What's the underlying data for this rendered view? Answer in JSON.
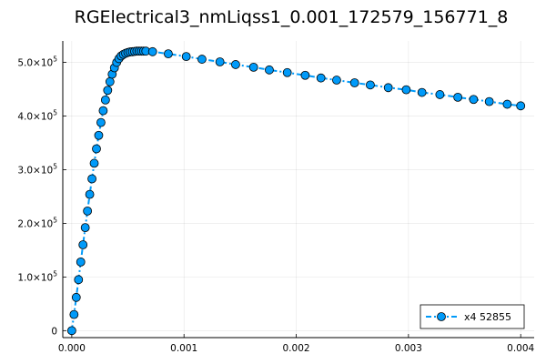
{
  "chart_data": {
    "type": "line",
    "title": "RGElectrical3_nmLiqss1_0.001_172579_156771_8",
    "xlabel": "",
    "ylabel": "",
    "xlim": [
      -8e-05,
      0.00412
    ],
    "ylim": [
      -13000,
      540000
    ],
    "grid": true,
    "legend_position": "bottom-right",
    "x_ticks": [
      {
        "value": 0.0,
        "label": "0.000"
      },
      {
        "value": 0.001,
        "label": "0.001"
      },
      {
        "value": 0.002,
        "label": "0.002"
      },
      {
        "value": 0.003,
        "label": "0.003"
      },
      {
        "value": 0.004,
        "label": "0.004"
      }
    ],
    "y_ticks": [
      {
        "value": 0,
        "mantissa": "0",
        "exponent": ""
      },
      {
        "value": 100000,
        "mantissa": "1.0×10",
        "exponent": "5"
      },
      {
        "value": 200000,
        "mantissa": "2.0×10",
        "exponent": "5"
      },
      {
        "value": 300000,
        "mantissa": "3.0×10",
        "exponent": "5"
      },
      {
        "value": 400000,
        "mantissa": "4.0×10",
        "exponent": "5"
      },
      {
        "value": 500000,
        "mantissa": "5.0×10",
        "exponent": "5"
      }
    ],
    "series": [
      {
        "name": "x4 52855",
        "color": "#009af9",
        "line_style": "dashdot",
        "marker": "circle",
        "x": [
          0.0,
          2e-05,
          4e-05,
          6e-05,
          8e-05,
          0.0001,
          0.00012,
          0.00014,
          0.00016,
          0.00018,
          0.0002,
          0.00022,
          0.00024,
          0.00026,
          0.00028,
          0.0003,
          0.00032,
          0.00034,
          0.00036,
          0.00038,
          0.0004,
          0.00042,
          0.00044,
          0.00046,
          0.00048,
          0.0005,
          0.00052,
          0.00054,
          0.00056,
          0.00058,
          0.0006,
          0.00062,
          0.00064,
          0.00066,
          0.00072,
          0.00086,
          0.00102,
          0.00116,
          0.00132,
          0.00146,
          0.00162,
          0.00176,
          0.00192,
          0.00208,
          0.00222,
          0.00236,
          0.00252,
          0.00266,
          0.00282,
          0.00298,
          0.00312,
          0.00328,
          0.00344,
          0.00358,
          0.00372,
          0.00388,
          0.004
        ],
        "y": [
          0,
          30000,
          62000,
          95000,
          128000,
          160000,
          192000,
          223000,
          254000,
          283000,
          312000,
          339000,
          364000,
          388000,
          410000,
          430000,
          448000,
          464000,
          478000,
          490000,
          500000,
          507000,
          512000,
          515000,
          517000,
          518500,
          519500,
          520000,
          520500,
          521000,
          521000,
          521000,
          521000,
          521000,
          520000,
          516000,
          511000,
          506000,
          501000,
          496000,
          491000,
          486000,
          481000,
          476000,
          471000,
          467000,
          462000,
          458000,
          453000,
          449000,
          444000,
          440000,
          435000,
          431000,
          427000,
          422000,
          419000
        ]
      }
    ]
  }
}
